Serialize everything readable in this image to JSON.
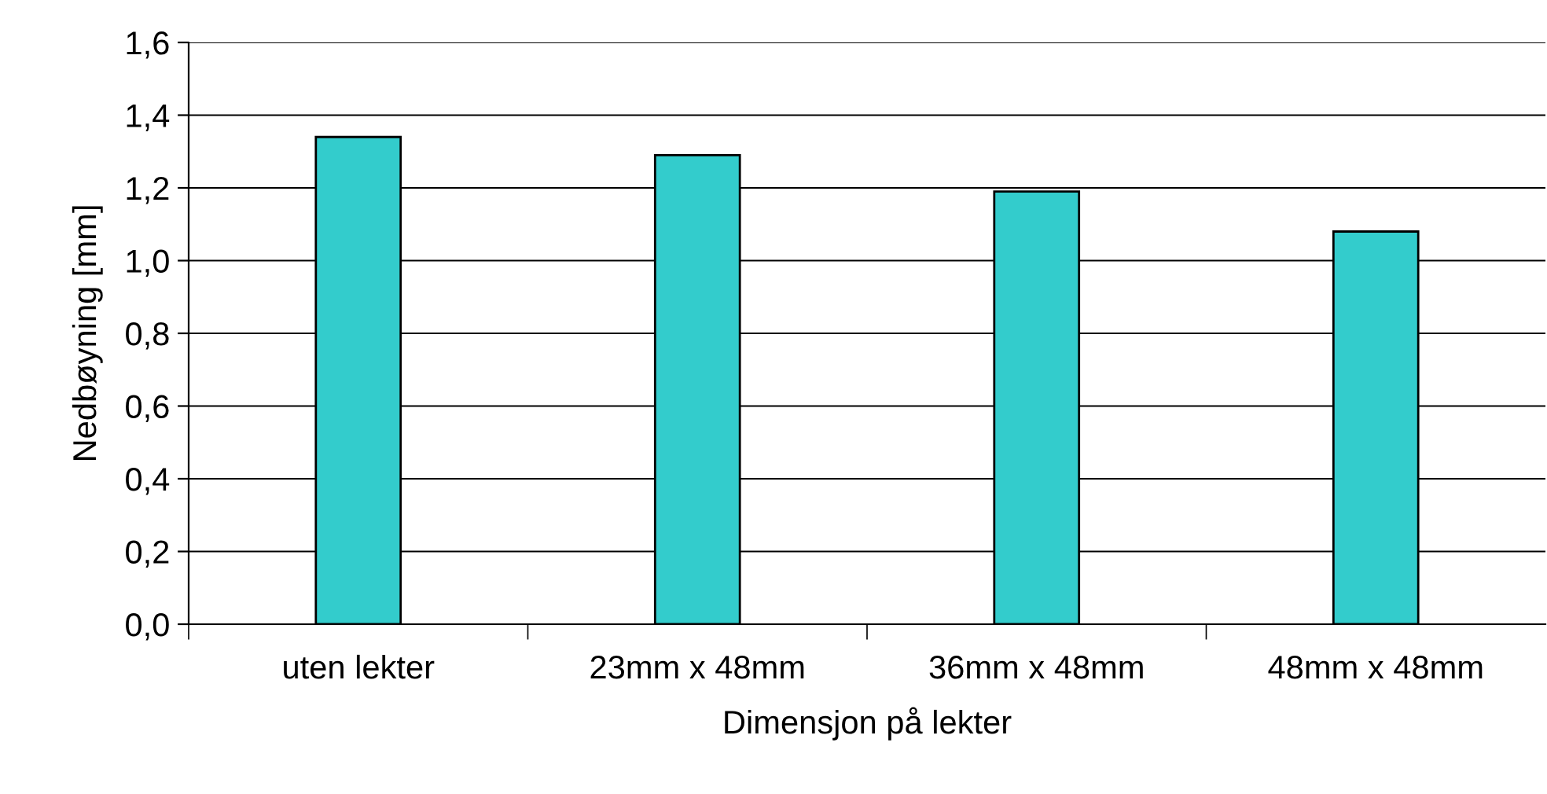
{
  "chart_data": {
    "type": "bar",
    "xlabel": "Dimensjon på lekter",
    "ylabel": "Nedbøyning [mm]",
    "categories": [
      "uten lekter",
      "23mm x 48mm",
      "36mm x 48mm",
      "48mm x 48mm"
    ],
    "values": [
      1.34,
      1.29,
      1.19,
      1.08
    ],
    "color": "#33cccc",
    "ylim": [
      0,
      1.6
    ],
    "yticks": [
      {
        "value": 0,
        "label": "0,0"
      },
      {
        "value": 0.2,
        "label": "0,2"
      },
      {
        "value": 0.4,
        "label": "0,4"
      },
      {
        "value": 0.6,
        "label": "0,6"
      },
      {
        "value": 0.8,
        "label": "0,8"
      },
      {
        "value": 1.0,
        "label": "1,0"
      },
      {
        "value": 1.2,
        "label": "1,2"
      },
      {
        "value": 1.4,
        "label": "1,4"
      },
      {
        "value": 1.6,
        "label": "1,6"
      }
    ],
    "grid": "y"
  }
}
